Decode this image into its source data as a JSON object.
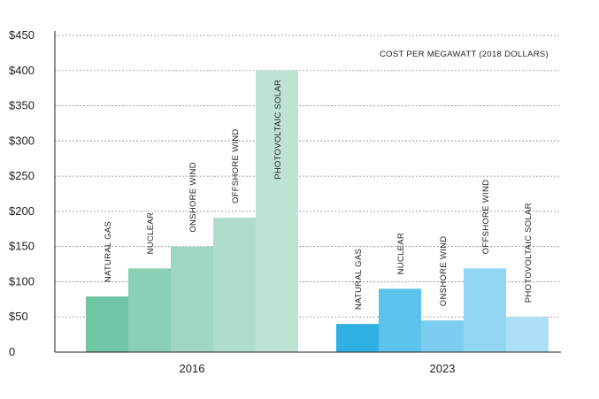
{
  "chart_data": {
    "type": "bar",
    "annotation": "COST PER MEGAWATT (2018 DOLLARS)",
    "ylim": [
      0,
      450
    ],
    "yticks": [
      {
        "value": 0,
        "label": "0"
      },
      {
        "value": 50,
        "label": "$50"
      },
      {
        "value": 100,
        "label": "$100"
      },
      {
        "value": 150,
        "label": "$150"
      },
      {
        "value": 200,
        "label": "$200"
      },
      {
        "value": 250,
        "label": "$250"
      },
      {
        "value": 300,
        "label": "$300"
      },
      {
        "value": 350,
        "label": "$350"
      },
      {
        "value": 400,
        "label": "$400"
      },
      {
        "value": 450,
        "label": "$450"
      }
    ],
    "grid": true,
    "groups": [
      {
        "category": "2016",
        "bars": [
          {
            "label": "NATURAL GAS",
            "value": 79,
            "color": "#6fc5a4"
          },
          {
            "label": "NUCLEAR",
            "value": 119,
            "color": "#8bd0b4"
          },
          {
            "label": "ONSHORE WIND",
            "value": 150,
            "color": "#9fd7c0"
          },
          {
            "label": "OFFSHORE WIND",
            "value": 191,
            "color": "#b0ddca"
          },
          {
            "label": "PHOTOVOLTAIC SOLAR",
            "value": 400,
            "color": "#bfe3d3"
          }
        ]
      },
      {
        "category": "2023",
        "bars": [
          {
            "label": "NATURAL GAS",
            "value": 40,
            "color": "#2eb1e2"
          },
          {
            "label": "NUCLEAR",
            "value": 90,
            "color": "#5cc4ec"
          },
          {
            "label": "ONSHORE WIND",
            "value": 45,
            "color": "#7ccdf0"
          },
          {
            "label": "OFFSHORE WIND",
            "value": 119,
            "color": "#92d6f3"
          },
          {
            "label": "PHOTOVOLTAIC SOLAR",
            "value": 50,
            "color": "#ade0f6"
          }
        ]
      }
    ]
  }
}
